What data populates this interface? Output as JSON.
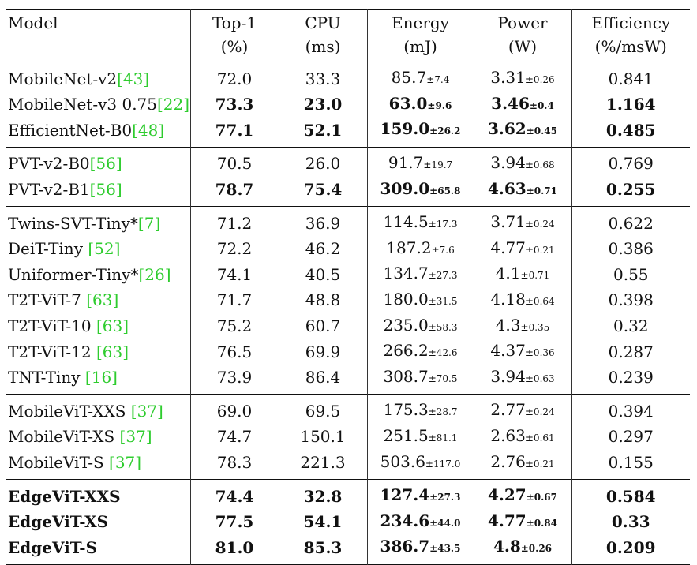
{
  "headers": [
    {
      "line1": "Model",
      "line2": ""
    },
    {
      "line1": "Top-1",
      "line2": "(%)"
    },
    {
      "line1": "CPU",
      "line2": "(ms)"
    },
    {
      "line1": "Energy",
      "line2": "(mJ)"
    },
    {
      "line1": "Power",
      "line2": "(W)"
    },
    {
      "line1": "Efficiency",
      "line2": "(%/msW)"
    }
  ],
  "groups": [
    {
      "rows": [
        {
          "name": "MobileNet-v2",
          "ref": "[43]",
          "top1": "72.0",
          "cpu": "33.3",
          "energy": "85.7",
          "energy_pm": "±7.4",
          "power": "3.31",
          "power_pm": "±0.26",
          "eff": "0.841",
          "bold": false
        },
        {
          "name": "MobileNet-v3 0.75",
          "ref": "[22]",
          "top1": "73.3",
          "cpu": "23.0",
          "energy": "63.0",
          "energy_pm": "±9.6",
          "power": "3.46",
          "power_pm": "±0.4",
          "eff": "1.164",
          "bold": true
        },
        {
          "name": "EfficientNet-B0",
          "ref": "[48]",
          "top1": "77.1",
          "cpu": "52.1",
          "energy": "159.0",
          "energy_pm": "±26.2",
          "power": "3.62",
          "power_pm": "±0.45",
          "eff": "0.485",
          "bold": true
        }
      ]
    },
    {
      "rows": [
        {
          "name": "PVT-v2-B0",
          "ref": "[56]",
          "top1": "70.5",
          "cpu": "26.0",
          "energy": "91.7",
          "energy_pm": "±19.7",
          "power": "3.94",
          "power_pm": "±0.68",
          "eff": "0.769",
          "bold": false
        },
        {
          "name": "PVT-v2-B1",
          "ref": "[56]",
          "top1": "78.7",
          "cpu": "75.4",
          "energy": "309.0",
          "energy_pm": "±65.8",
          "power": "4.63",
          "power_pm": "±0.71",
          "eff": "0.255",
          "bold": true
        }
      ]
    },
    {
      "rows": [
        {
          "name": "Twins-SVT-Tiny*",
          "ref": "[7]",
          "top1": "71.2",
          "cpu": "36.9",
          "energy": "114.5",
          "energy_pm": "±17.3",
          "power": "3.71",
          "power_pm": "±0.24",
          "eff": "0.622",
          "bold": false
        },
        {
          "name": "DeiT-Tiny ",
          "ref": "[52]",
          "top1": "72.2",
          "cpu": "46.2",
          "energy": "187.2",
          "energy_pm": "±7.6",
          "power": "4.77",
          "power_pm": "±0.21",
          "eff": "0.386",
          "bold": false
        },
        {
          "name": "Uniformer-Tiny*",
          "ref": "[26]",
          "top1": "74.1",
          "cpu": "40.5",
          "energy": "134.7",
          "energy_pm": "±27.3",
          "power": "4.1",
          "power_pm": "±0.71",
          "eff": "0.55",
          "bold": false
        },
        {
          "name": "T2T-ViT-7 ",
          "ref": "[63]",
          "top1": "71.7",
          "cpu": "48.8",
          "energy": "180.0",
          "energy_pm": "±31.5",
          "power": "4.18",
          "power_pm": "±0.64",
          "eff": "0.398",
          "bold": false
        },
        {
          "name": "T2T-ViT-10 ",
          "ref": "[63]",
          "top1": "75.2",
          "cpu": "60.7",
          "energy": "235.0",
          "energy_pm": "±58.3",
          "power": "4.3",
          "power_pm": "±0.35",
          "eff": "0.32",
          "bold": false
        },
        {
          "name": "T2T-ViT-12 ",
          "ref": "[63]",
          "top1": "76.5",
          "cpu": "69.9",
          "energy": "266.2",
          "energy_pm": "±42.6",
          "power": "4.37",
          "power_pm": "±0.36",
          "eff": "0.287",
          "bold": false
        },
        {
          "name": "TNT-Tiny ",
          "ref": "[16]",
          "top1": "73.9",
          "cpu": "86.4",
          "energy": "308.7",
          "energy_pm": "±70.5",
          "power": "3.94",
          "power_pm": "±0.63",
          "eff": "0.239",
          "bold": false
        }
      ]
    },
    {
      "rows": [
        {
          "name": "MobileViT-XXS ",
          "ref": "[37]",
          "top1": "69.0",
          "cpu": "69.5",
          "energy": "175.3",
          "energy_pm": "±28.7",
          "power": "2.77",
          "power_pm": "±0.24",
          "eff": "0.394",
          "bold": false
        },
        {
          "name": "MobileViT-XS ",
          "ref": "[37]",
          "top1": "74.7",
          "cpu": "150.1",
          "energy": "251.5",
          "energy_pm": "±81.1",
          "power": "2.63",
          "power_pm": "±0.61",
          "eff": "0.297",
          "bold": false
        },
        {
          "name": "MobileViT-S ",
          "ref": "[37]",
          "top1": "78.3",
          "cpu": "221.3",
          "energy": "503.6",
          "energy_pm": "±117.0",
          "power": "2.76",
          "power_pm": "±0.21",
          "eff": "0.155",
          "bold": false
        }
      ]
    },
    {
      "rows": [
        {
          "name": "EdgeViT-XXS",
          "ref": "",
          "top1": "74.4",
          "cpu": "32.8",
          "energy": "127.4",
          "energy_pm": "±27.3",
          "power": "4.27",
          "power_pm": "±0.67",
          "eff": "0.584",
          "bold": true,
          "boldName": true
        },
        {
          "name": "EdgeViT-XS",
          "ref": "",
          "top1": "77.5",
          "cpu": "54.1",
          "energy": "234.6",
          "energy_pm": "±44.0",
          "power": "4.77",
          "power_pm": "±0.84",
          "eff": "0.33",
          "bold": true,
          "boldName": true
        },
        {
          "name": "EdgeViT-S",
          "ref": "",
          "top1": "81.0",
          "cpu": "85.3",
          "energy": "386.7",
          "energy_pm": "±43.5",
          "power": "4.8",
          "power_pm": "±0.26",
          "eff": "0.209",
          "bold": true,
          "boldName": true
        }
      ]
    }
  ]
}
